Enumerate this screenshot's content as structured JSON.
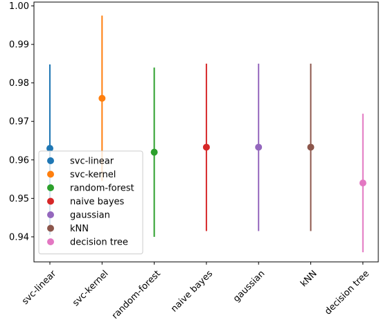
{
  "chart_data": {
    "type": "scatter",
    "title": "",
    "xlabel": "",
    "ylabel": "",
    "categories": [
      "svc-linear",
      "svc-kernel",
      "random-forest",
      "naive bayes",
      "gaussian",
      "kNN",
      "decision tree"
    ],
    "ylim": [
      0.9335,
      1.001
    ],
    "yticks": [
      "0.94",
      "0.95",
      "0.96",
      "0.97",
      "0.98",
      "0.99",
      "1.00"
    ],
    "series": [
      {
        "name": "svc-linear",
        "color": "#1f77b4",
        "value": 0.963,
        "low": 0.9405,
        "high": 0.9848
      },
      {
        "name": "svc-kernel",
        "color": "#ff7f0e",
        "value": 0.976,
        "low": 0.9545,
        "high": 0.9975
      },
      {
        "name": "random-forest",
        "color": "#2ca02c",
        "value": 0.962,
        "low": 0.94,
        "high": 0.984
      },
      {
        "name": "naive bayes",
        "color": "#d62728",
        "value": 0.9633,
        "low": 0.9415,
        "high": 0.985
      },
      {
        "name": "gaussian",
        "color": "#9467bd",
        "value": 0.9633,
        "low": 0.9415,
        "high": 0.985
      },
      {
        "name": "kNN",
        "color": "#8c564b",
        "value": 0.9633,
        "low": 0.9415,
        "high": 0.985
      },
      {
        "name": "decision tree",
        "color": "#e377c2",
        "value": 0.954,
        "low": 0.936,
        "high": 0.972
      }
    ],
    "grid": false,
    "legend": "lower-left"
  }
}
